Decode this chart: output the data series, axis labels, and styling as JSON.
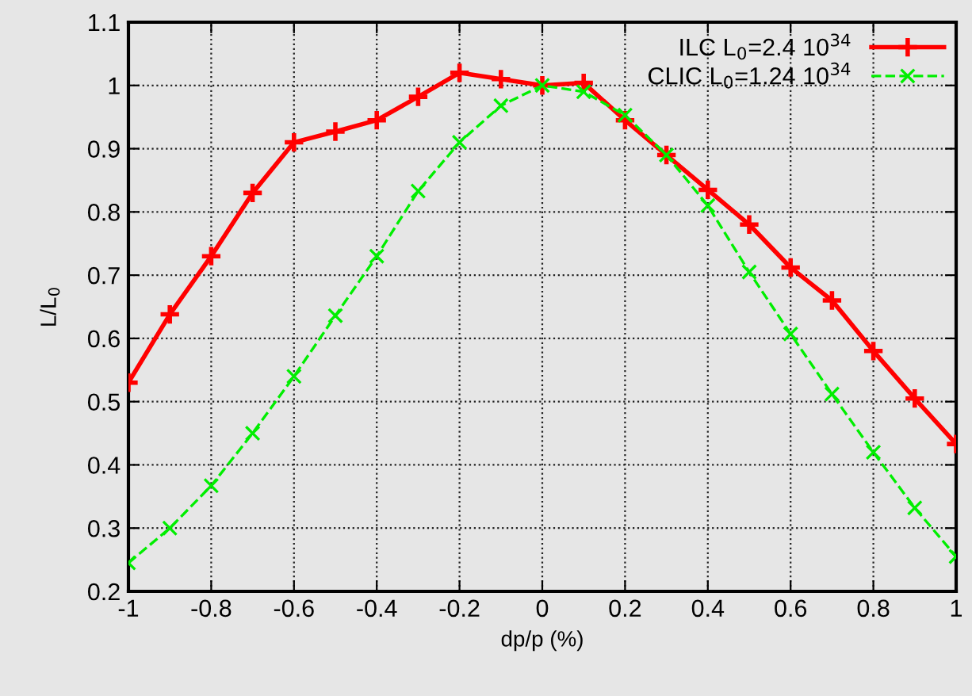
{
  "chart_data": {
    "type": "line",
    "xlabel": "dp/p (%)",
    "ylabel": "L/L$_{0}$",
    "xlim": [
      -1,
      1
    ],
    "xticks": [
      -1,
      -0.8,
      -0.6,
      -0.4,
      -0.2,
      0,
      0.2,
      0.4,
      0.6,
      0.8,
      1
    ],
    "ylim": [
      0.2,
      1.1
    ],
    "yticks": [
      0.2,
      0.3,
      0.4,
      0.5,
      0.6,
      0.7,
      0.8,
      0.9,
      1,
      1.1
    ],
    "grid": true,
    "legend": "top right",
    "series": [
      {
        "name": "ILC L$_{0}$=2.4 10$^{34}$",
        "color": "#ff0000",
        "marker": "plus",
        "line_style": "solid",
        "x": [
          -1,
          -0.9,
          -0.8,
          -0.7,
          -0.6,
          -0.5,
          -0.4,
          -0.3,
          -0.2,
          -0.1,
          0,
          0.1,
          0.2,
          0.3,
          0.4,
          0.5,
          0.6,
          0.7,
          0.8,
          0.9,
          1
        ],
        "values": [
          0.53,
          0.638,
          0.73,
          0.83,
          0.91,
          0.927,
          0.945,
          0.982,
          1.02,
          1.01,
          1.0,
          1.004,
          0.945,
          0.89,
          0.835,
          0.78,
          0.712,
          0.66,
          0.58,
          0.505,
          0.433
        ]
      },
      {
        "name": "CLIC L$_{0}$=1.24 10$^{34}$",
        "color": "#00ee00",
        "marker": "cross",
        "line_style": "dashed",
        "x": [
          -1,
          -0.9,
          -0.8,
          -0.7,
          -0.6,
          -0.5,
          -0.4,
          -0.3,
          -0.2,
          -0.1,
          0,
          0.1,
          0.2,
          0.3,
          0.4,
          0.5,
          0.6,
          0.7,
          0.8,
          0.9,
          1
        ],
        "values": [
          0.245,
          0.3,
          0.367,
          0.45,
          0.54,
          0.636,
          0.73,
          0.833,
          0.91,
          0.968,
          1.0,
          0.99,
          0.953,
          0.89,
          0.81,
          0.705,
          0.607,
          0.512,
          0.42,
          0.332,
          0.255
        ]
      }
    ]
  }
}
